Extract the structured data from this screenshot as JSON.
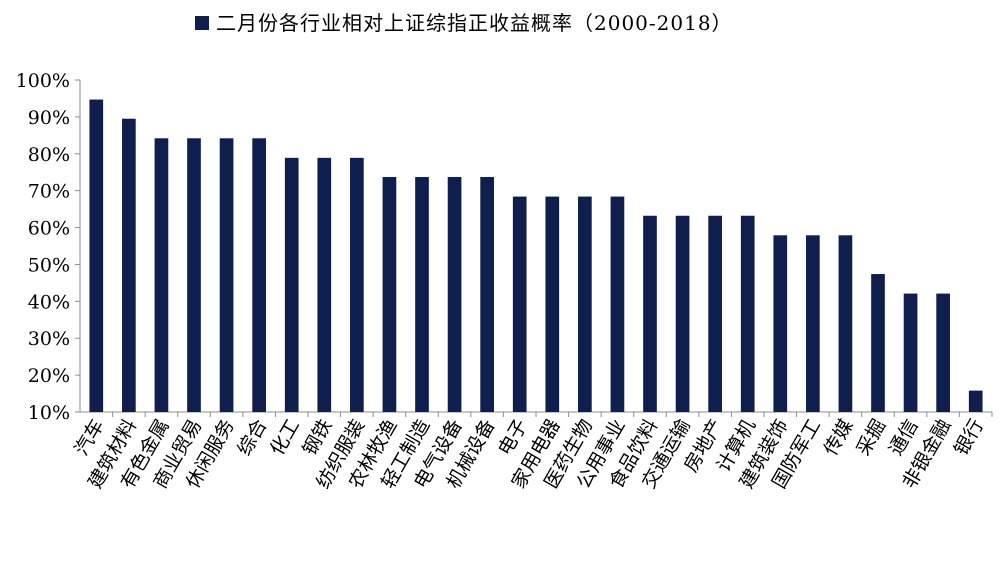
{
  "chart_data": {
    "type": "bar",
    "title": "二月份各行业相对上证综指正收益概率（2000-2018）",
    "legend": {
      "label": "二月份各行业相对上证综指正收益概率（2000-2018）",
      "placement": "top"
    },
    "categories": [
      "汽车",
      "建筑材料",
      "有色金属",
      "商业贸易",
      "休闲服务",
      "综合",
      "化工",
      "钢铁",
      "纺织服装",
      "农林牧渔",
      "轻工制造",
      "电气设备",
      "机械设备",
      "电子",
      "家用电器",
      "医药生物",
      "公用事业",
      "食品饮料",
      "交通运输",
      "房地产",
      "计算机",
      "建筑装饰",
      "国防军工",
      "传媒",
      "采掘",
      "通信",
      "非银金融",
      "银行"
    ],
    "series": [
      {
        "values": [
          94.7,
          89.5,
          84.2,
          84.2,
          84.2,
          84.2,
          78.9,
          78.9,
          78.9,
          73.7,
          73.7,
          73.7,
          73.7,
          68.4,
          68.4,
          68.4,
          68.4,
          63.2,
          63.2,
          63.2,
          63.2,
          57.9,
          57.9,
          57.9,
          47.4,
          42.1,
          42.1,
          15.8
        ]
      }
    ],
    "ylim": [
      10,
      100
    ],
    "yticks": [
      "10%",
      "20%",
      "30%",
      "40%",
      "50%",
      "60%",
      "70%",
      "80%",
      "90%",
      "100%"
    ],
    "grid": false,
    "colors": {
      "bar": "#0f1f4d",
      "axis": "#8c8c8c",
      "text": "#000000"
    }
  }
}
